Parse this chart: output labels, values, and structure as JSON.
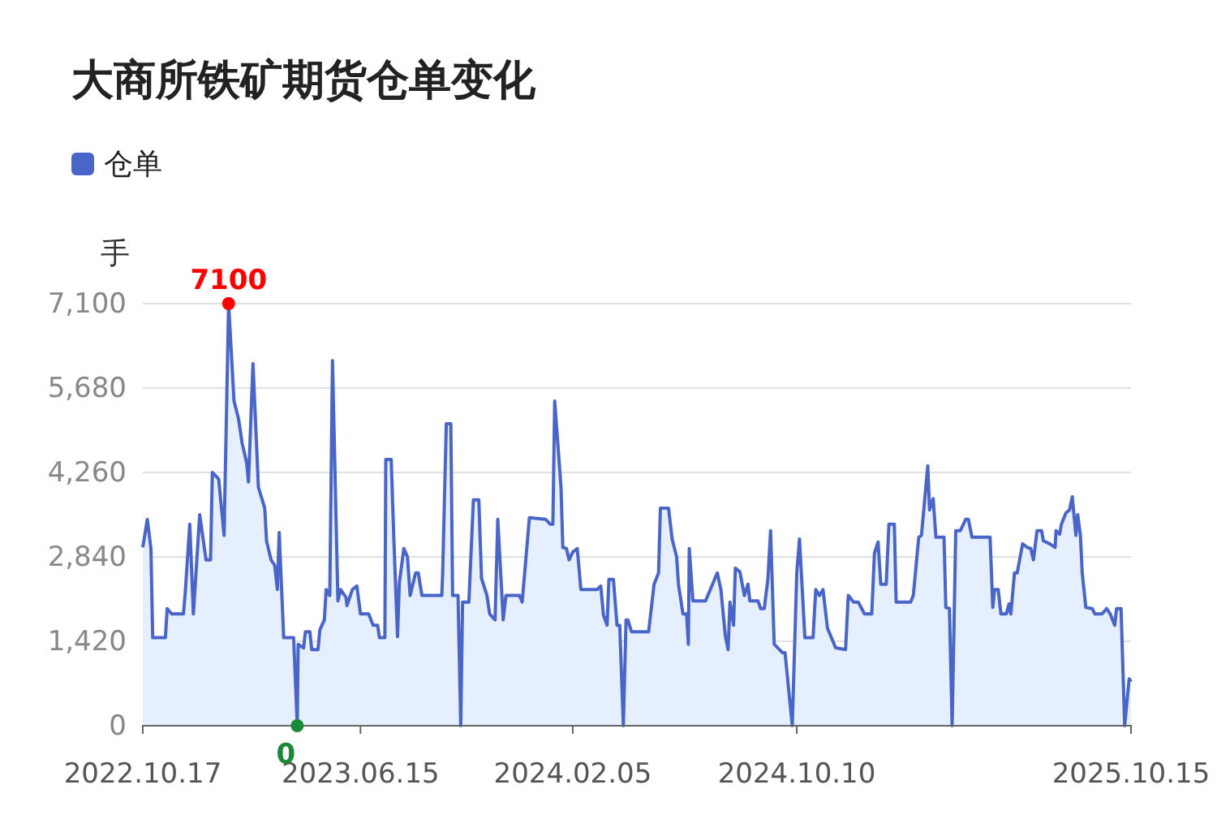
{
  "chart_data": {
    "type": "area",
    "title": "大商所铁矿期货仓单变化",
    "ylabel": "手",
    "legend": "top left",
    "grid": "y",
    "xlim": [
      "2022-10-17",
      "2025-10-15"
    ],
    "xticks": [
      {
        "value": "2022-10-17",
        "label": "2022.10.17"
      },
      {
        "value": "2023-06-15",
        "label": "2023.06.15"
      },
      {
        "value": "2024-02-05",
        "label": "2024.02.05"
      },
      {
        "value": "2024-10-10",
        "label": "2024.10.10"
      },
      {
        "value": "2025-10-15",
        "label": "2025.10.15"
      }
    ],
    "ylim": [
      0,
      7100
    ],
    "yticks": [
      0,
      {
        "value": 1420,
        "label": "1,420"
      },
      {
        "value": 2840,
        "label": "2,840"
      },
      {
        "value": 4260,
        "label": "4,260"
      },
      {
        "value": 5680,
        "label": "5,680"
      },
      {
        "value": 7100,
        "label": "7,100"
      }
    ],
    "annotations": [
      {
        "text": "7100",
        "x": "2023-01-20",
        "y": 7100
      },
      {
        "text": "0",
        "x": "2023-04-06",
        "y": 0
      }
    ],
    "x": [
      "2022-10-17",
      "2022-10-22",
      "2022-10-26",
      "2022-10-28",
      "2022-11-11",
      "2022-11-13",
      "2022-11-18",
      "2022-12-01",
      "2022-12-03",
      "2022-12-08",
      "2022-12-12",
      "2022-12-19",
      "2022-12-26",
      "2022-12-31",
      "2023-01-02",
      "2023-01-09",
      "2023-01-15",
      "2023-01-20",
      "2023-01-26",
      "2023-01-31",
      "2023-02-04",
      "2023-02-09",
      "2023-02-11",
      "2023-02-16",
      "2023-02-22",
      "2023-03-01",
      "2023-03-03",
      "2023-03-08",
      "2023-03-12",
      "2023-03-15",
      "2023-03-17",
      "2023-03-22",
      "2023-04-02",
      "2023-04-06",
      "2023-04-07",
      "2023-04-13",
      "2023-04-15",
      "2023-04-20",
      "2023-04-22",
      "2023-04-29",
      "2023-05-01",
      "2023-05-06",
      "2023-05-08",
      "2023-05-12",
      "2023-05-15",
      "2023-05-21",
      "2023-05-24",
      "2023-05-30",
      "2023-05-31",
      "2023-06-06",
      "2023-06-11",
      "2023-06-15",
      "2023-06-24",
      "2023-06-29",
      "2023-07-04",
      "2023-07-06",
      "2023-07-12",
      "2023-07-13",
      "2023-07-19",
      "2023-07-22",
      "2023-07-26",
      "2023-07-28",
      "2023-08-02",
      "2023-08-06",
      "2023-08-09",
      "2023-08-15",
      "2023-08-18",
      "2023-08-22",
      "2023-09-13",
      "2023-09-14",
      "2023-09-18",
      "2023-09-23",
      "2023-09-25",
      "2023-10-01",
      "2023-10-04",
      "2023-10-06",
      "2023-10-13",
      "2023-10-18",
      "2023-10-24",
      "2023-10-27",
      "2023-11-02",
      "2023-11-05",
      "2023-11-11",
      "2023-11-14",
      "2023-11-20",
      "2023-11-23",
      "2023-12-08",
      "2023-12-11",
      "2023-12-19",
      "2024-01-06",
      "2024-01-11",
      "2024-01-14",
      "2024-01-16",
      "2024-01-23",
      "2024-01-25",
      "2024-01-29",
      "2024-02-01",
      "2024-02-05",
      "2024-02-10",
      "2024-02-14",
      "2024-03-03",
      "2024-03-07",
      "2024-03-10",
      "2024-03-14",
      "2024-03-16",
      "2024-03-21",
      "2024-03-25",
      "2024-03-28",
      "2024-04-01",
      "2024-04-04",
      "2024-04-06",
      "2024-04-10",
      "2024-04-29",
      "2024-05-05",
      "2024-05-10",
      "2024-05-12",
      "2024-05-21",
      "2024-05-25",
      "2024-05-30",
      "2024-06-01",
      "2024-06-06",
      "2024-06-10",
      "2024-06-12",
      "2024-06-13",
      "2024-06-17",
      "2024-07-01",
      "2024-07-14",
      "2024-07-18",
      "2024-07-23",
      "2024-07-26",
      "2024-07-28",
      "2024-08-01",
      "2024-08-03",
      "2024-08-08",
      "2024-08-13",
      "2024-08-17",
      "2024-08-19",
      "2024-08-28",
      "2024-08-31",
      "2024-09-04",
      "2024-09-08",
      "2024-09-11",
      "2024-09-15",
      "2024-09-24",
      "2024-09-27",
      "2024-10-05",
      "2024-10-10",
      "2024-10-13",
      "2024-10-19",
      "2024-10-28",
      "2024-10-31",
      "2024-11-04",
      "2024-11-08",
      "2024-11-13",
      "2024-11-22",
      "2024-12-03",
      "2024-12-06",
      "2024-12-12",
      "2024-12-17",
      "2024-12-24",
      "2025-01-01",
      "2025-01-04",
      "2025-01-08",
      "2025-01-11",
      "2025-01-17",
      "2025-01-20",
      "2025-01-26",
      "2025-01-28",
      "2025-02-13",
      "2025-02-16",
      "2025-02-22",
      "2025-02-25",
      "2025-03-04",
      "2025-03-06",
      "2025-03-10",
      "2025-03-13",
      "2025-03-22",
      "2025-03-24",
      "2025-03-28",
      "2025-03-31",
      "2025-04-04",
      "2025-04-09",
      "2025-04-15",
      "2025-04-18",
      "2025-04-22",
      "2025-05-12",
      "2025-05-15",
      "2025-05-17",
      "2025-05-21",
      "2025-05-24",
      "2025-05-30",
      "2025-06-02",
      "2025-06-04",
      "2025-06-08",
      "2025-06-11",
      "2025-06-17",
      "2025-06-22",
      "2025-06-26",
      "2025-06-29",
      "2025-07-03",
      "2025-07-08",
      "2025-07-10",
      "2025-07-17",
      "2025-07-23",
      "2025-07-24",
      "2025-07-28",
      "2025-07-30",
      "2025-08-04",
      "2025-08-08",
      "2025-08-11",
      "2025-08-15",
      "2025-08-17",
      "2025-08-20",
      "2025-08-22",
      "2025-08-26",
      "2025-09-02",
      "2025-09-05",
      "2025-09-13",
      "2025-09-18",
      "2025-09-22",
      "2025-09-27",
      "2025-09-29",
      "2025-10-04",
      "2025-10-08",
      "2025-10-13",
      "2025-10-15"
    ],
    "series": [
      {
        "name": "仓单",
        "color": "#4a65c8",
        "values": [
          3000,
          3470,
          2980,
          1480,
          1480,
          1970,
          1880,
          1880,
          2240,
          3390,
          1880,
          3550,
          2790,
          2790,
          4260,
          4150,
          3200,
          7100,
          5460,
          5160,
          4750,
          4420,
          4100,
          6090,
          4010,
          3660,
          3110,
          2790,
          2700,
          2290,
          3250,
          1480,
          1480,
          0,
          1370,
          1310,
          1580,
          1580,
          1280,
          1280,
          1610,
          1780,
          2290,
          2190,
          6140,
          2100,
          2290,
          2160,
          2020,
          2290,
          2350,
          1880,
          1880,
          1690,
          1690,
          1480,
          1480,
          4480,
          4480,
          3110,
          1500,
          2400,
          2980,
          2840,
          2190,
          2570,
          2570,
          2190,
          2190,
          2570,
          5080,
          5080,
          2190,
          2190,
          0,
          2080,
          2080,
          3800,
          3800,
          2480,
          2190,
          1880,
          1780,
          3470,
          1780,
          2190,
          2190,
          2080,
          3500,
          3470,
          3390,
          3390,
          5460,
          4010,
          3000,
          2980,
          2790,
          2920,
          2980,
          2290,
          2290,
          2350,
          1860,
          1690,
          2460,
          2460,
          1690,
          1690,
          0,
          1780,
          1780,
          1580,
          1580,
          2380,
          2570,
          3660,
          3660,
          3140,
          2840,
          2380,
          1880,
          1880,
          1370,
          2980,
          2100,
          2100,
          2570,
          2290,
          1500,
          1280,
          2080,
          1690,
          2650,
          2590,
          2190,
          2380,
          2100,
          2100,
          1970,
          1970,
          2460,
          3280,
          1370,
          1230,
          1230,
          0,
          2570,
          3140,
          1480,
          1480,
          2290,
          2190,
          2290,
          1640,
          1310,
          1280,
          2190,
          2080,
          2080,
          1880,
          1880,
          2900,
          3090,
          2380,
          2380,
          3390,
          3390,
          2080,
          2080,
          2190,
          3170,
          3200,
          4370,
          3630,
          3820,
          3170,
          3170,
          1990,
          1970,
          0,
          3280,
          3280,
          3470,
          3470,
          3170,
          3170,
          1990,
          2290,
          2290,
          1880,
          1880,
          2050,
          1880,
          2570,
          2570,
          3060,
          3000,
          2980,
          2790,
          3280,
          3280,
          3110,
          3060,
          3000,
          3280,
          3220,
          3390,
          3580,
          3630,
          3850,
          3200,
          3550,
          3200,
          2570,
          1990,
          1970,
          1880,
          1880,
          1970,
          1880,
          1690,
          1970,
          1970,
          0,
          790,
          740
        ]
      }
    ]
  }
}
